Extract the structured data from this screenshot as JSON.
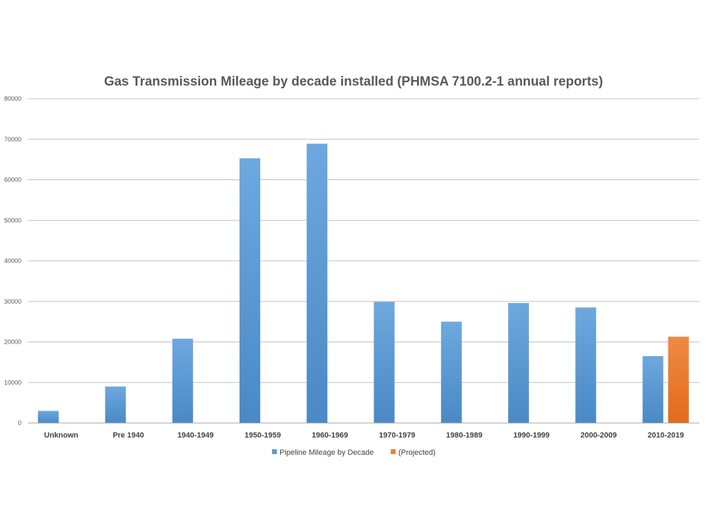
{
  "colors": {
    "series_1": "#5b9bd5",
    "series_1_light": "#6ea8de",
    "series_1_dark": "#4a89c5",
    "series_2": "#ed7d31",
    "series_2_light": "#f08a45",
    "series_2_dark": "#e26b1c"
  },
  "chart_data": {
    "type": "bar",
    "title": "Gas Transmission Mileage by decade installed (PHMSA 7100.2-1 annual reports)",
    "xlabel": "",
    "ylabel": "",
    "ylim": [
      0,
      80000
    ],
    "yticks": [
      "80000",
      "70000",
      "60000",
      "50000",
      "40000",
      "30000",
      "20000",
      "10000",
      "0"
    ],
    "grid": true,
    "legend_position": "bottom",
    "categories": [
      "Unknown",
      "Pre 1940",
      "1940-1949",
      "1950-1959",
      "1960-1969",
      "1970-1979",
      "1980-1989",
      "1990-1999",
      "2000-2009",
      "2010-2019"
    ],
    "series": [
      {
        "name": "Pipeline Mileage by Decade",
        "values": [
          3000,
          9000,
          20800,
          65300,
          68900,
          29900,
          25000,
          29600,
          28500,
          16500
        ]
      },
      {
        "name": "(Projected)",
        "values": [
          null,
          null,
          null,
          null,
          null,
          null,
          null,
          null,
          null,
          21300
        ]
      }
    ]
  }
}
